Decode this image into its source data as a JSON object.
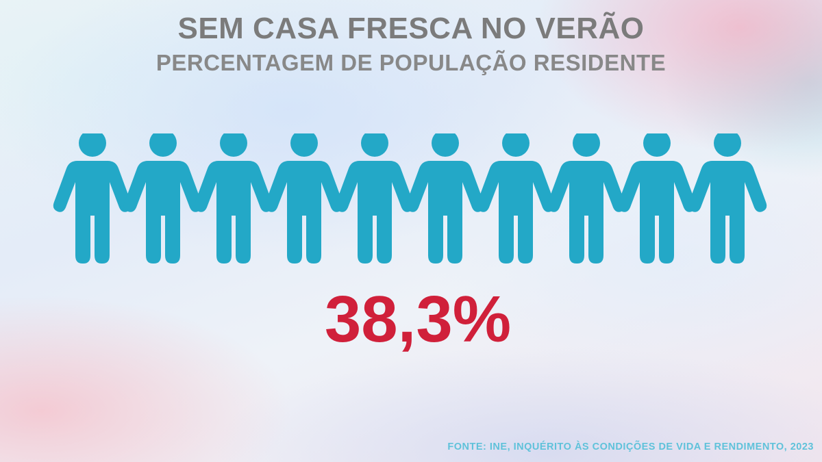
{
  "chart_data": {
    "type": "pictogram",
    "title": "SEM CASA FRESCA NO VERÃO",
    "subtitle": "PERCENTAGEM DE POPULAÇÃO RESIDENTE",
    "value": 38.3,
    "value_label": "38,3%",
    "total_icons": 10,
    "units_per_icon_percent": 10,
    "icon": "person-icon",
    "highlight_color": "#d0203a",
    "base_color": "#23a8c7",
    "source": "FONTE: INE, INQUÉRITO ÀS CONDIÇÕES DE VIDA E RENDIMENTO, 2023"
  }
}
